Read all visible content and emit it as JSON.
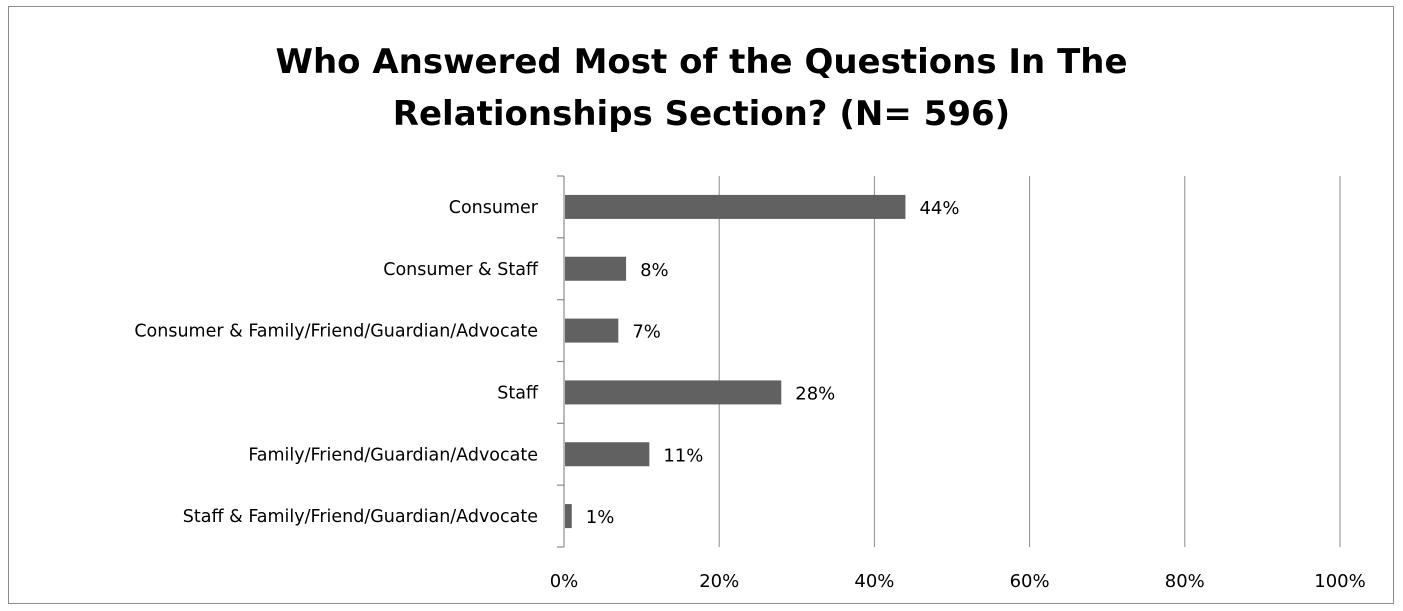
{
  "chart_data": {
    "type": "bar",
    "orientation": "horizontal",
    "title_lines": [
      "Who Answered Most of the Questions In The",
      "Relationships Section? (N= 596)"
    ],
    "categories": [
      "Consumer",
      "Consumer & Staff",
      "Consumer & Family/Friend/Guardian/Advocate",
      "Staff",
      "Family/Friend/Guardian/Advocate",
      "Staff & Family/Friend/Guardian/Advocate"
    ],
    "values": [
      44,
      8,
      7,
      28,
      11,
      1
    ],
    "data_labels": [
      "44%",
      "8%",
      "7%",
      "28%",
      "11%",
      "1%"
    ],
    "xlim": [
      0,
      100
    ],
    "x_ticks": [
      0,
      20,
      40,
      60,
      80,
      100
    ],
    "x_tick_labels": [
      "0%",
      "20%",
      "40%",
      "60%",
      "80%",
      "100%"
    ],
    "grid": "vertical",
    "legend": "none",
    "colors": {
      "bar": "#616161",
      "grid": "#8c8c8c",
      "axis": "#8c8c8c",
      "border": "#8c8c8c"
    }
  }
}
